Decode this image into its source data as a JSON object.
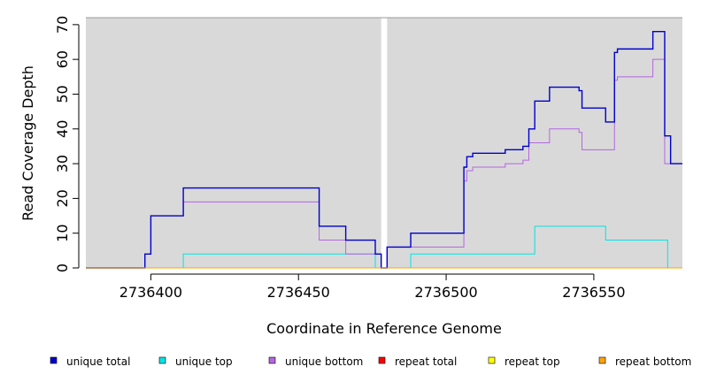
{
  "chart_data": {
    "type": "line",
    "step": true,
    "title": "",
    "xlabel": "Coordinate in Reference Genome",
    "ylabel": "Read Coverage Depth",
    "xlim": [
      2736378,
      2736580
    ],
    "ylim": [
      0,
      72
    ],
    "x_ticks": [
      2736400,
      2736450,
      2736500,
      2736550
    ],
    "x_tick_labels": [
      "2736400",
      "2736450",
      "2736500",
      "2736550"
    ],
    "y_ticks": [
      0,
      10,
      20,
      30,
      40,
      50,
      60,
      70
    ],
    "y_tick_labels": [
      "0",
      "10",
      "20",
      "30",
      "40",
      "50",
      "60",
      "70"
    ],
    "gap_region": [
      2736478,
      2736480
    ],
    "background_color": "#d9d9d9",
    "grid": false,
    "legend_position": "bottom",
    "series": [
      {
        "name": "unique total",
        "color": "#0000cc",
        "points": [
          [
            2736378,
            0
          ],
          [
            2736398,
            0
          ],
          [
            2736398,
            4
          ],
          [
            2736400,
            4
          ],
          [
            2736400,
            15
          ],
          [
            2736411,
            15
          ],
          [
            2736411,
            23
          ],
          [
            2736457,
            23
          ],
          [
            2736457,
            12
          ],
          [
            2736466,
            12
          ],
          [
            2736466,
            8
          ],
          [
            2736476,
            8
          ],
          [
            2736476,
            4
          ],
          [
            2736478,
            4
          ],
          [
            2736478,
            0
          ],
          [
            2736480,
            0
          ],
          [
            2736480,
            6
          ],
          [
            2736488,
            6
          ],
          [
            2736488,
            10
          ],
          [
            2736506,
            10
          ],
          [
            2736506,
            29
          ],
          [
            2736507,
            29
          ],
          [
            2736507,
            32
          ],
          [
            2736509,
            32
          ],
          [
            2736509,
            33
          ],
          [
            2736520,
            33
          ],
          [
            2736520,
            34
          ],
          [
            2736526,
            34
          ],
          [
            2736526,
            35
          ],
          [
            2736528,
            35
          ],
          [
            2736528,
            40
          ],
          [
            2736530,
            40
          ],
          [
            2736530,
            48
          ],
          [
            2736535,
            48
          ],
          [
            2736535,
            52
          ],
          [
            2736545,
            52
          ],
          [
            2736545,
            51
          ],
          [
            2736546,
            51
          ],
          [
            2736546,
            46
          ],
          [
            2736554,
            46
          ],
          [
            2736554,
            42
          ],
          [
            2736557,
            42
          ],
          [
            2736557,
            62
          ],
          [
            2736558,
            62
          ],
          [
            2736558,
            63
          ],
          [
            2736570,
            63
          ],
          [
            2736570,
            68
          ],
          [
            2736574,
            68
          ],
          [
            2736574,
            38
          ],
          [
            2736576,
            38
          ],
          [
            2736576,
            30
          ],
          [
            2736580,
            30
          ]
        ]
      },
      {
        "name": "unique top",
        "color": "#00e5e5",
        "points": [
          [
            2736400,
            0
          ],
          [
            2736411,
            0
          ],
          [
            2736411,
            4
          ],
          [
            2736476,
            4
          ],
          [
            2736476,
            0
          ],
          [
            2736478,
            0
          ],
          [
            2736488,
            0
          ],
          [
            2736488,
            4
          ],
          [
            2736530,
            4
          ],
          [
            2736530,
            12
          ],
          [
            2736554,
            12
          ],
          [
            2736554,
            8
          ],
          [
            2736575,
            8
          ],
          [
            2736575,
            0
          ],
          [
            2736580,
            0
          ]
        ]
      },
      {
        "name": "unique bottom",
        "color": "#b366e0",
        "points": [
          [
            2736400,
            15
          ],
          [
            2736411,
            15
          ],
          [
            2736411,
            19
          ],
          [
            2736457,
            19
          ],
          [
            2736457,
            8
          ],
          [
            2736466,
            8
          ],
          [
            2736466,
            4
          ],
          [
            2736478,
            4
          ],
          [
            2736478,
            0
          ],
          [
            2736480,
            0
          ],
          [
            2736480,
            6
          ],
          [
            2736506,
            6
          ],
          [
            2736506,
            25
          ],
          [
            2736507,
            25
          ],
          [
            2736507,
            28
          ],
          [
            2736509,
            28
          ],
          [
            2736509,
            29
          ],
          [
            2736520,
            29
          ],
          [
            2736520,
            30
          ],
          [
            2736526,
            30
          ],
          [
            2736526,
            31
          ],
          [
            2736528,
            31
          ],
          [
            2736528,
            36
          ],
          [
            2736535,
            36
          ],
          [
            2736535,
            40
          ],
          [
            2736545,
            40
          ],
          [
            2736545,
            39
          ],
          [
            2736546,
            39
          ],
          [
            2736546,
            34
          ],
          [
            2736557,
            34
          ],
          [
            2736557,
            54
          ],
          [
            2736558,
            54
          ],
          [
            2736558,
            55
          ],
          [
            2736570,
            55
          ],
          [
            2736570,
            60
          ],
          [
            2736574,
            60
          ],
          [
            2736574,
            30
          ],
          [
            2736580,
            30
          ]
        ]
      },
      {
        "name": "repeat total",
        "color": "#ff0000",
        "points": [
          [
            2736378,
            0
          ],
          [
            2736580,
            0
          ]
        ]
      },
      {
        "name": "repeat top",
        "color": "#ffff00",
        "points": [
          [
            2736378,
            0
          ],
          [
            2736580,
            0
          ]
        ]
      },
      {
        "name": "repeat bottom",
        "color": "#ffa500",
        "points": [
          [
            2736378,
            0
          ],
          [
            2736580,
            0
          ]
        ]
      }
    ]
  }
}
